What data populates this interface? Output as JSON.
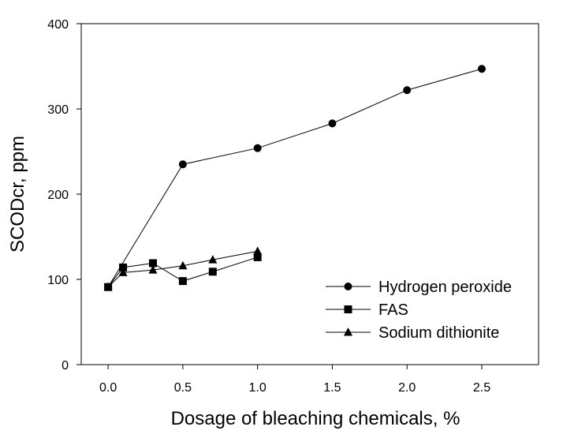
{
  "chart_data": {
    "type": "line",
    "title": "",
    "xlabel": "Dosage of bleaching chemicals, %",
    "ylabel": "SCODcr, ppm",
    "xlim": [
      -0.18,
      2.88
    ],
    "ylim": [
      0,
      400
    ],
    "xticks": [
      0.0,
      0.5,
      1.0,
      1.5,
      2.0,
      2.5
    ],
    "xtick_labels": [
      "0.0",
      "0.5",
      "1.0",
      "1.5",
      "2.0",
      "2.5"
    ],
    "yticks": [
      0,
      100,
      200,
      300,
      400
    ],
    "ytick_labels": [
      "0",
      "100",
      "200",
      "300",
      "400"
    ],
    "grid": false,
    "legend_position": "lower-right",
    "series": [
      {
        "name": "Hydrogen peroxide",
        "marker": "circle",
        "x": [
          0.0,
          0.5,
          1.0,
          1.5,
          2.0,
          2.5
        ],
        "y": [
          91,
          235,
          254,
          283,
          322,
          347
        ]
      },
      {
        "name": "FAS",
        "marker": "square",
        "x": [
          0.0,
          0.1,
          0.3,
          0.5,
          0.7,
          1.0
        ],
        "y": [
          91,
          114,
          119,
          98,
          109,
          126
        ]
      },
      {
        "name": "Sodium dithionite",
        "marker": "triangle",
        "x": [
          0.0,
          0.1,
          0.3,
          0.5,
          0.7,
          1.0
        ],
        "y": [
          91,
          108,
          111,
          116,
          123,
          133
        ]
      }
    ]
  }
}
